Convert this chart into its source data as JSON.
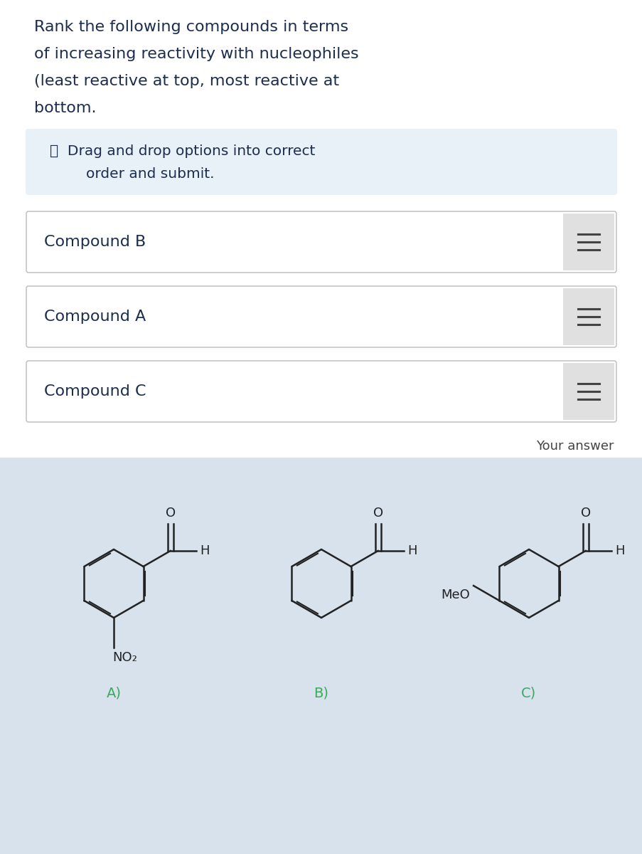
{
  "bg_color": "#ffffff",
  "title_lines": [
    "Rank the following compounds in terms",
    "of increasing reactivity with nucleophiles",
    "(least reactive at top, most reactive at",
    "bottom."
  ],
  "title_fontsize": 16,
  "title_color": "#1c2d4f",
  "info_box_color": "#e8f0f8",
  "info_text_line1": "ⓘ  Drag and drop options into correct",
  "info_text_line2": "        order and submit.",
  "info_fontsize": 14.5,
  "compounds": [
    "Compound B",
    "Compound A",
    "Compound C"
  ],
  "compound_box_bg": "#ffffff",
  "compound_box_border": "#cccccc",
  "compound_text_color": "#1c2d4f",
  "compound_fontsize": 16,
  "handle_bg": "#e0e0e0",
  "handle_line_color": "#444444",
  "your_answer_text": "Your answer",
  "your_answer_color": "#444444",
  "your_answer_fontsize": 13,
  "bottom_panel_color": "#d8e2ed",
  "label_color": "#3aaa5a",
  "label_fontsize": 14,
  "struct_color": "#222222",
  "struct_fontsize": 13
}
